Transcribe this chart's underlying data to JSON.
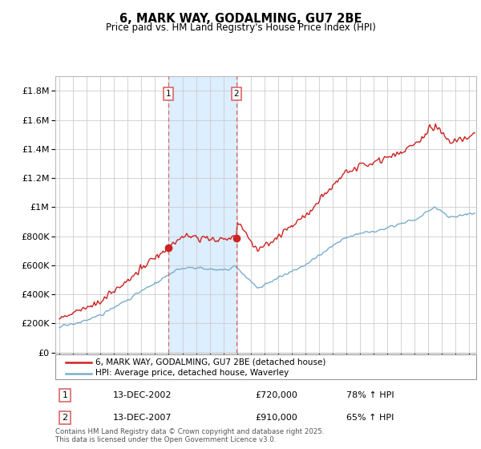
{
  "title": "6, MARK WAY, GODALMING, GU7 2BE",
  "subtitle": "Price paid vs. HM Land Registry's House Price Index (HPI)",
  "ytick_values": [
    0,
    200000,
    400000,
    600000,
    800000,
    1000000,
    1200000,
    1400000,
    1600000,
    1800000
  ],
  "ylim": [
    0,
    1900000
  ],
  "xlim_start": 1994.7,
  "xlim_end": 2025.5,
  "transaction1": {
    "date_label": "13-DEC-2002",
    "price": "£720,000",
    "hpi_pct": "78%",
    "direction": "↑",
    "x": 2002.96
  },
  "transaction2": {
    "date_label": "13-DEC-2007",
    "price": "£910,000",
    "hpi_pct": "65%",
    "direction": "↑",
    "x": 2007.96
  },
  "legend_line1": "6, MARK WAY, GODALMING, GU7 2BE (detached house)",
  "legend_line2": "HPI: Average price, detached house, Waverley",
  "footer": "Contains HM Land Registry data © Crown copyright and database right 2025.\nThis data is licensed under the Open Government Licence v3.0.",
  "line_color_red": "#cc2222",
  "line_color_blue": "#7aadcc",
  "shading_color": "#ddeeff",
  "bg_color": "#ffffff",
  "grid_color": "#cccccc",
  "vline_color": "#dd6666"
}
